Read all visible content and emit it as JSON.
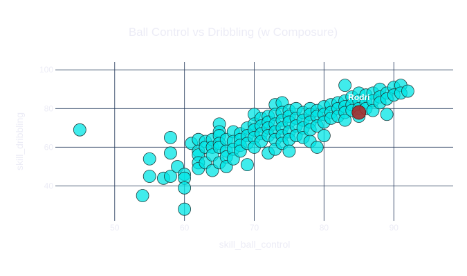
{
  "chart_data": {
    "type": "scatter",
    "title": "Ball Control vs Dribbling (w Composure)",
    "xlabel": "skill_ball_control",
    "ylabel": "skill_dribbling",
    "xlim": [
      41.5,
      98.5
    ],
    "ylim": [
      22,
      104
    ],
    "xticks": [
      50,
      60,
      70,
      80,
      90
    ],
    "yticks": [
      40,
      60,
      80,
      100
    ],
    "grid": true,
    "colors": {
      "points": "#00e5e5",
      "highlight": "#b22222",
      "grid": "#2a3f5f",
      "text": "#ececf6"
    },
    "points": [
      [
        45,
        69
      ],
      [
        54,
        35
      ],
      [
        55,
        54
      ],
      [
        55,
        45
      ],
      [
        57,
        44
      ],
      [
        58,
        65
      ],
      [
        58,
        57
      ],
      [
        58,
        45
      ],
      [
        59,
        50
      ],
      [
        60,
        46
      ],
      [
        60,
        44
      ],
      [
        60,
        39
      ],
      [
        60,
        28
      ],
      [
        61,
        62
      ],
      [
        62,
        64
      ],
      [
        62,
        58
      ],
      [
        62,
        56
      ],
      [
        62,
        52
      ],
      [
        62,
        49
      ],
      [
        63,
        63
      ],
      [
        63,
        60
      ],
      [
        63,
        52
      ],
      [
        64,
        64
      ],
      [
        64,
        60
      ],
      [
        64,
        56
      ],
      [
        64,
        48
      ],
      [
        65,
        72
      ],
      [
        65,
        68
      ],
      [
        65,
        66
      ],
      [
        65,
        62
      ],
      [
        65,
        60
      ],
      [
        65,
        52
      ],
      [
        66,
        64
      ],
      [
        66,
        58
      ],
      [
        66,
        55
      ],
      [
        66,
        50
      ],
      [
        67,
        68
      ],
      [
        67,
        63
      ],
      [
        67,
        59
      ],
      [
        67,
        54
      ],
      [
        68,
        67
      ],
      [
        68,
        64
      ],
      [
        68,
        61
      ],
      [
        68,
        58
      ],
      [
        69,
        70
      ],
      [
        69,
        66
      ],
      [
        69,
        62
      ],
      [
        69,
        51
      ],
      [
        70,
        77
      ],
      [
        70,
        72
      ],
      [
        70,
        69
      ],
      [
        70,
        65
      ],
      [
        70,
        60
      ],
      [
        71,
        75
      ],
      [
        71,
        71
      ],
      [
        71,
        67
      ],
      [
        71,
        63
      ],
      [
        72,
        76
      ],
      [
        72,
        73
      ],
      [
        72,
        70
      ],
      [
        72,
        66
      ],
      [
        72,
        57
      ],
      [
        73,
        82
      ],
      [
        73,
        77
      ],
      [
        73,
        72
      ],
      [
        73,
        68
      ],
      [
        73,
        64
      ],
      [
        73,
        59
      ],
      [
        74,
        83
      ],
      [
        74,
        78
      ],
      [
        74,
        74
      ],
      [
        74,
        70
      ],
      [
        74,
        66
      ],
      [
        74,
        62
      ],
      [
        75,
        79
      ],
      [
        75,
        76
      ],
      [
        75,
        73
      ],
      [
        75,
        68
      ],
      [
        75,
        64
      ],
      [
        75,
        58
      ],
      [
        76,
        80
      ],
      [
        76,
        75
      ],
      [
        76,
        71
      ],
      [
        76,
        66
      ],
      [
        77,
        78
      ],
      [
        77,
        74
      ],
      [
        77,
        70
      ],
      [
        77,
        65
      ],
      [
        78,
        80
      ],
      [
        78,
        77
      ],
      [
        78,
        73
      ],
      [
        78,
        69
      ],
      [
        78,
        63
      ],
      [
        79,
        79
      ],
      [
        79,
        76
      ],
      [
        79,
        71
      ],
      [
        79,
        60
      ],
      [
        80,
        81
      ],
      [
        80,
        77
      ],
      [
        80,
        73
      ],
      [
        80,
        66
      ],
      [
        81,
        82
      ],
      [
        81,
        78
      ],
      [
        81,
        75
      ],
      [
        82,
        83
      ],
      [
        82,
        80
      ],
      [
        82,
        76
      ],
      [
        83,
        92
      ],
      [
        83,
        84
      ],
      [
        83,
        81
      ],
      [
        83,
        78
      ],
      [
        83,
        74
      ],
      [
        84,
        86
      ],
      [
        84,
        82
      ],
      [
        84,
        79
      ],
      [
        85,
        88
      ],
      [
        85,
        84
      ],
      [
        85,
        80
      ],
      [
        85,
        76
      ],
      [
        86,
        87
      ],
      [
        86,
        83
      ],
      [
        86,
        80
      ],
      [
        87,
        88
      ],
      [
        87,
        84
      ],
      [
        87,
        79
      ],
      [
        88,
        90
      ],
      [
        88,
        86
      ],
      [
        88,
        83
      ],
      [
        89,
        88
      ],
      [
        89,
        85
      ],
      [
        89,
        77
      ],
      [
        90,
        91
      ],
      [
        90,
        87
      ],
      [
        91,
        92
      ],
      [
        91,
        88
      ],
      [
        92,
        89
      ]
    ],
    "highlight": {
      "x": 85,
      "y": 78,
      "label": "Rodri"
    }
  }
}
